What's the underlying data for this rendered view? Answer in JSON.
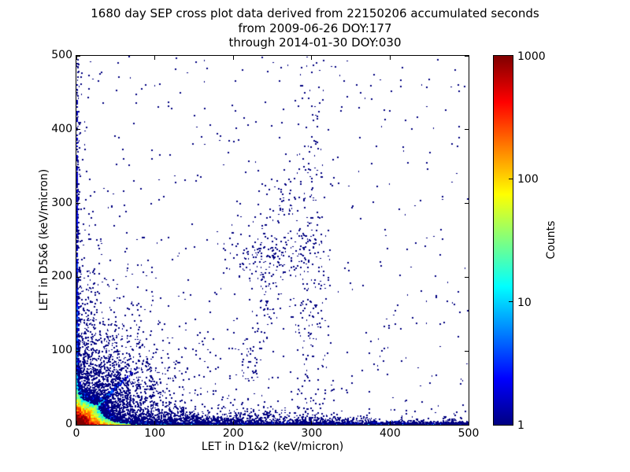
{
  "figure": {
    "title_lines": [
      "1680 day SEP cross plot data derived from 22150206 accumulated seconds",
      "from 2009-06-26 DOY:177",
      "through 2014-01-30 DOY:030"
    ],
    "background_color": "#ffffff"
  },
  "chart_data": {
    "type": "heatmap",
    "title": "1680 day SEP cross plot data derived from 22150206 accumulated seconds from 2009-06-26 DOY:177 through 2014-01-30 DOY:030",
    "xlabel": "LET in D1&2 (keV/micron)",
    "ylabel": "LET in D5&6 (keV/micron)",
    "xlim": [
      0,
      500
    ],
    "ylim": [
      0,
      500
    ],
    "xticks": [
      "0",
      "100",
      "200",
      "300",
      "400",
      "500"
    ],
    "yticks": [
      "0",
      "100",
      "200",
      "300",
      "400",
      "500"
    ],
    "grid": false,
    "point_color": "#000080",
    "point_accent_color": "#0a2ad0",
    "accent_prob": 0.06,
    "colorbar": {
      "label": "Counts",
      "scale": "log",
      "min": 1,
      "max": 1000,
      "ticks": [
        "1",
        "10",
        "100",
        "1000"
      ],
      "tick_values": [
        1,
        10,
        100,
        1000
      ],
      "colormap": "jet",
      "stops_top_to_bottom": [
        "#800000",
        "#ff0000",
        "#ffff00",
        "#00ffff",
        "#0000ff",
        "#000082"
      ]
    },
    "seed": 20140130,
    "density_terms": [
      {
        "kind": "radial",
        "amp": 6000,
        "scale": 5.5
      },
      {
        "kind": "bottom_band",
        "amp": 1500,
        "xscale": 16,
        "ybase": 1.8,
        "yextra": 7,
        "yextra_scale": 25
      },
      {
        "kind": "bottom_row",
        "amp": 22,
        "yscale": 1.4,
        "xfade": 200,
        "floor": 0.3
      },
      {
        "kind": "left_band",
        "amp": 35,
        "xscale": 1.7,
        "yscale": 30,
        "amp2": 11,
        "yscale2": 240
      },
      {
        "kind": "diag",
        "amp": 90,
        "dscale": 2.0,
        "rscale": 26
      }
    ],
    "scatter_components": [
      {
        "kind": "quad",
        "n": 1600,
        "sx": 52,
        "sy": 52
      },
      {
        "kind": "quad",
        "n": 420,
        "sx": 20,
        "sy": 120
      },
      {
        "kind": "quad",
        "n": 420,
        "sx": 140,
        "sy": 16
      },
      {
        "kind": "bottomband",
        "n": 1700,
        "xpow": 1.2,
        "base": 2.5,
        "extra": 9,
        "fade": 130
      },
      {
        "kind": "vstreaks",
        "xs": [
          13,
          21,
          29,
          39,
          51,
          64,
          78,
          95
        ],
        "n": 42,
        "yscale": 65,
        "jitter": 1.5
      },
      {
        "kind": "rays",
        "slopes": [
          0.42,
          0.55,
          0.68,
          1.0,
          1.35,
          1.8,
          2.4,
          3.1
        ],
        "n": 50,
        "dscale": 70,
        "jitter": 2.5
      },
      {
        "kind": "cluster",
        "cx": 249,
        "cy": 227,
        "sx": 27,
        "sy": 19,
        "n": 160
      },
      {
        "kind": "cluster",
        "cx": 238,
        "cy": 155,
        "sx": 10,
        "sy": 42,
        "n": 65
      },
      {
        "kind": "cluster",
        "cx": 262,
        "cy": 300,
        "sx": 16,
        "sy": 26,
        "n": 55
      },
      {
        "kind": "vband",
        "cx": 297,
        "sx": 10,
        "y0": 240,
        "y1": 505,
        "pow": 1.4,
        "n": 110
      },
      {
        "kind": "vband",
        "cx": 301,
        "sx": 14,
        "y0": 8,
        "y1": 240,
        "pow": 1.0,
        "n": 150
      },
      {
        "kind": "vband",
        "cx": 218,
        "sx": 8,
        "y0": 60,
        "y1": 120,
        "pow": 1.0,
        "n": 30
      },
      {
        "kind": "leftcol",
        "n": 210,
        "xscale": 2.0,
        "ymax": 500,
        "pow": 1.6
      },
      {
        "kind": "cluster",
        "cx": 130,
        "cy": 8,
        "sx": 18,
        "sy": 8,
        "n": 150
      },
      {
        "kind": "cluster",
        "cx": 170,
        "cy": 6,
        "sx": 20,
        "sy": 6,
        "n": 130
      },
      {
        "kind": "cluster",
        "cx": 230,
        "cy": 7,
        "sx": 24,
        "sy": 8,
        "n": 220
      },
      {
        "kind": "cluster",
        "cx": 300,
        "cy": 5,
        "sx": 18,
        "sy": 6,
        "n": 150
      },
      {
        "kind": "cluster",
        "cx": 360,
        "cy": 4,
        "sx": 16,
        "sy": 4,
        "n": 110
      },
      {
        "kind": "cluster",
        "cx": 430,
        "cy": 3,
        "sx": 14,
        "sy": 3.5,
        "n": 85
      },
      {
        "kind": "cluster",
        "cx": 478,
        "cy": 3,
        "sx": 12,
        "sy": 3,
        "n": 65
      },
      {
        "kind": "bg",
        "n": 450,
        "xpow": 1.6,
        "ypow": 2.0
      },
      {
        "kind": "bg",
        "n": 220,
        "xpow": 1.0,
        "ypow": 1.0
      }
    ]
  }
}
